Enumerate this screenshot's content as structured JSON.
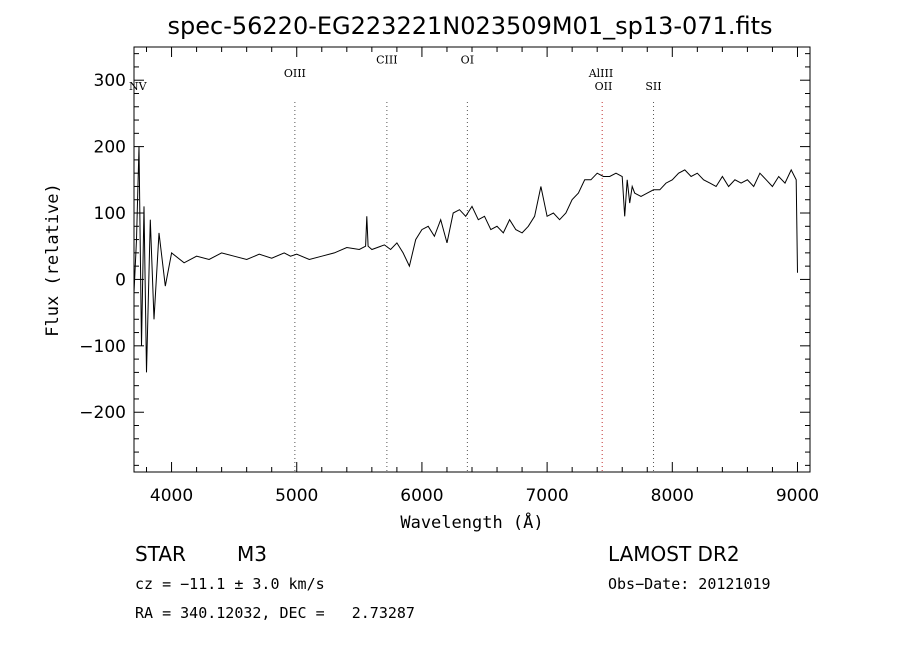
{
  "chart_data": {
    "type": "line",
    "title": "spec-56220-EG223221N023509M01_sp13-071.fits",
    "xlabel": "Wavelength (Å)",
    "ylabel": "Flux (relative)",
    "xlim": [
      3700,
      9100
    ],
    "ylim": [
      -290,
      350
    ],
    "xticks": [
      4000,
      5000,
      6000,
      7000,
      8000,
      9000
    ],
    "yticks": [
      -200,
      -100,
      0,
      100,
      200,
      300
    ],
    "grid": false,
    "series": [
      {
        "x": [
          3700,
          3720,
          3740,
          3760,
          3780,
          3800,
          3830,
          3860,
          3900,
          3950,
          4000,
          4100,
          4200,
          4300,
          4400,
          4500,
          4600,
          4700,
          4800,
          4900,
          4950,
          5000,
          5100,
          5200,
          5300,
          5400,
          5500,
          5550,
          5560,
          5570,
          5600,
          5700,
          5750,
          5800,
          5850,
          5900,
          5950,
          6000,
          6050,
          6100,
          6150,
          6200,
          6250,
          6300,
          6350,
          6400,
          6450,
          6500,
          6550,
          6600,
          6650,
          6700,
          6750,
          6800,
          6850,
          6900,
          6950,
          7000,
          7050,
          7100,
          7150,
          7200,
          7250,
          7300,
          7350,
          7400,
          7450,
          7500,
          7550,
          7600,
          7620,
          7640,
          7660,
          7680,
          7700,
          7750,
          7800,
          7850,
          7900,
          7950,
          8000,
          8050,
          8100,
          8150,
          8200,
          8250,
          8300,
          8350,
          8400,
          8450,
          8500,
          8550,
          8600,
          8650,
          8700,
          8750,
          8800,
          8850,
          8900,
          8950,
          8990,
          9000
        ],
        "y": [
          -20,
          60,
          200,
          -100,
          110,
          -140,
          90,
          -60,
          70,
          -10,
          40,
          25,
          35,
          30,
          40,
          35,
          30,
          38,
          32,
          40,
          35,
          38,
          30,
          35,
          40,
          48,
          45,
          50,
          95,
          50,
          45,
          52,
          45,
          55,
          40,
          20,
          60,
          75,
          80,
          65,
          90,
          55,
          100,
          105,
          95,
          110,
          90,
          95,
          75,
          80,
          70,
          90,
          75,
          70,
          80,
          95,
          140,
          95,
          100,
          90,
          100,
          120,
          130,
          150,
          150,
          160,
          155,
          155,
          160,
          155,
          95,
          150,
          115,
          140,
          130,
          125,
          130,
          135,
          135,
          145,
          150,
          160,
          165,
          155,
          160,
          150,
          145,
          140,
          155,
          140,
          150,
          145,
          150,
          140,
          160,
          150,
          140,
          155,
          145,
          165,
          150,
          10
        ]
      }
    ],
    "annotations": [
      {
        "label": "NV",
        "x": 3730,
        "y": 285
      },
      {
        "label": "OIII",
        "x": 4985,
        "y": 305
      },
      {
        "label": "CIII",
        "x": 5720,
        "y": 325
      },
      {
        "label": "OI",
        "x": 6363,
        "y": 325
      },
      {
        "label": "AlIII",
        "x": 7430,
        "y": 305
      },
      {
        "label": "OII",
        "x": 7450,
        "y": 285
      },
      {
        "label": "SII",
        "x": 7850,
        "y": 285
      }
    ],
    "emission_line_markers": [
      4985,
      5720,
      6363,
      7440,
      7850
    ]
  },
  "info": {
    "object_class": "STAR",
    "subclass": "M3",
    "survey": "LAMOST DR2",
    "cz": "cz = −11.1 ± 3.0 km/s",
    "obs_date": "Obs−Date: 20121019",
    "coords": "RA = 340.12032, DEC =   2.73287"
  }
}
